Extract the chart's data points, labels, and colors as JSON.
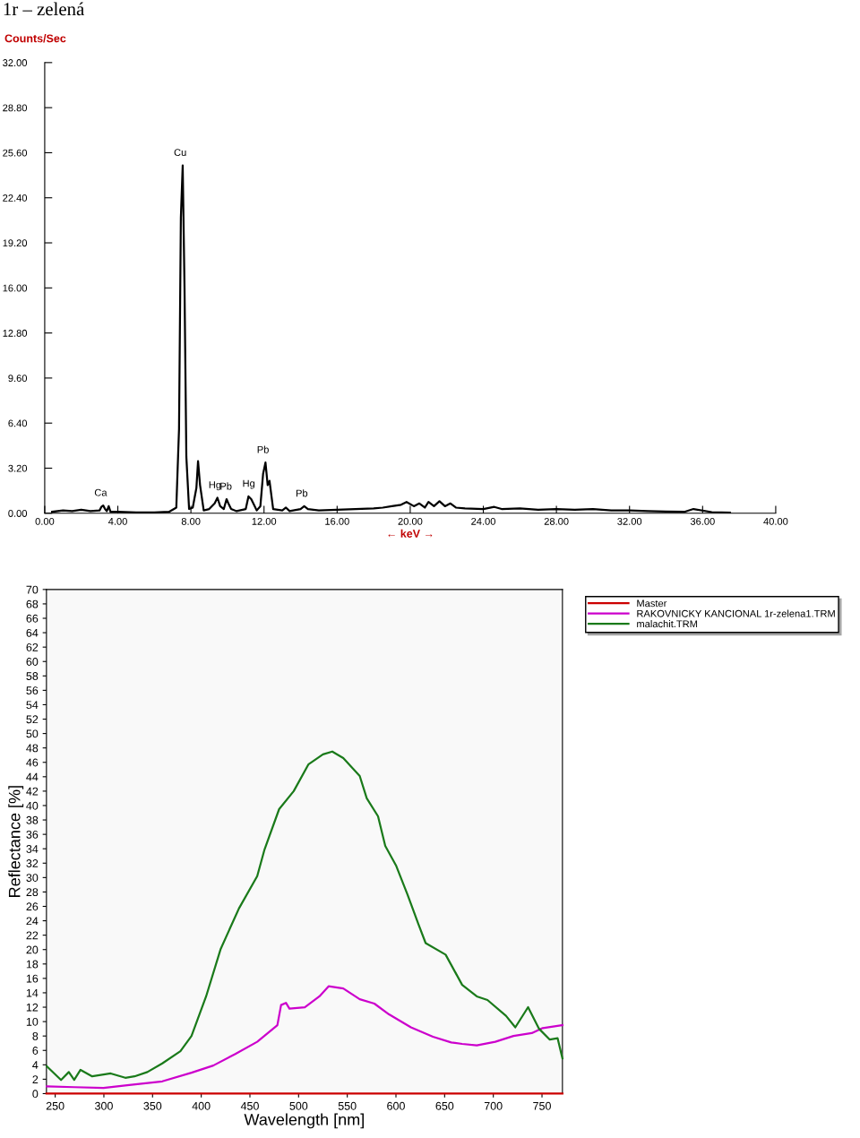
{
  "chart_data": [
    {
      "type": "line",
      "title": "1r – zelená",
      "ylabel": "Counts/Sec",
      "xlabel": "← keV →",
      "xlim": [
        0,
        40
      ],
      "ylim": [
        0,
        32
      ],
      "xticks": [
        {
          "value": 0,
          "label": "0.00"
        },
        {
          "value": 4,
          "label": "4.00"
        },
        {
          "value": 8,
          "label": "8.00"
        },
        {
          "value": 12,
          "label": "12.00"
        },
        {
          "value": 16,
          "label": "16.00"
        },
        {
          "value": 20,
          "label": "20.00"
        },
        {
          "value": 24,
          "label": "24.00"
        },
        {
          "value": 28,
          "label": "28.00"
        },
        {
          "value": 32,
          "label": "32.00"
        },
        {
          "value": 36,
          "label": "36.00"
        },
        {
          "value": 40,
          "label": "40.00"
        }
      ],
      "yticks": [
        {
          "value": 0,
          "label": "0.00"
        },
        {
          "value": 3.2,
          "label": "3.20"
        },
        {
          "value": 6.4,
          "label": "6.40"
        },
        {
          "value": 9.6,
          "label": "9.60"
        },
        {
          "value": 12.8,
          "label": "12.80"
        },
        {
          "value": 16,
          "label": "16.00"
        },
        {
          "value": 19.2,
          "label": "19.20"
        },
        {
          "value": 22.4,
          "label": "22.40"
        },
        {
          "value": 25.6,
          "label": "25.60"
        },
        {
          "value": 28.8,
          "label": "28.80"
        },
        {
          "value": 32,
          "label": "32.00"
        }
      ],
      "grid": false,
      "legend": false,
      "series": [
        {
          "color": "#000000",
          "x": [
            0.4,
            1.0,
            1.5,
            2.0,
            2.5,
            3.0,
            3.1,
            3.2,
            3.3,
            3.4,
            3.5,
            3.6,
            4.0,
            5.0,
            6.0,
            6.8,
            7.2,
            7.35,
            7.45,
            7.55,
            7.65,
            7.75,
            7.9,
            8.1,
            8.3,
            8.39,
            8.5,
            8.7,
            9.0,
            9.3,
            9.45,
            9.6,
            9.8,
            9.95,
            10.05,
            10.2,
            10.5,
            11.0,
            11.15,
            11.3,
            11.45,
            11.6,
            11.8,
            11.95,
            12.08,
            12.2,
            12.3,
            12.5,
            13.0,
            13.2,
            13.4,
            14.0,
            14.2,
            14.4,
            15.0,
            16.0,
            17.0,
            18.0,
            18.5,
            19.0,
            19.5,
            19.8,
            20.2,
            20.5,
            20.8,
            21.0,
            21.3,
            21.6,
            21.9,
            22.2,
            22.5,
            23.0,
            24.0,
            24.6,
            25.0,
            26.0,
            27.0,
            28.0,
            29.0,
            30.0,
            31.0,
            32.0,
            33.0,
            34.0,
            35.0,
            35.5,
            36.5,
            37.5
          ],
          "values": [
            0.1,
            0.2,
            0.15,
            0.25,
            0.15,
            0.2,
            0.45,
            0.55,
            0.3,
            0.15,
            0.5,
            0.1,
            0.1,
            0.05,
            0.05,
            0.1,
            0.4,
            6.0,
            21.0,
            24.7,
            16.0,
            4.0,
            0.3,
            0.4,
            1.8,
            3.7,
            2.0,
            0.2,
            0.3,
            0.7,
            1.1,
            0.5,
            0.3,
            1.0,
            0.7,
            0.3,
            0.15,
            0.3,
            1.2,
            1.0,
            0.6,
            0.2,
            0.5,
            2.8,
            3.6,
            2.0,
            2.3,
            0.3,
            0.2,
            0.4,
            0.15,
            0.3,
            0.5,
            0.3,
            0.2,
            0.25,
            0.3,
            0.35,
            0.4,
            0.5,
            0.6,
            0.8,
            0.5,
            0.7,
            0.4,
            0.8,
            0.5,
            0.85,
            0.5,
            0.7,
            0.4,
            0.35,
            0.3,
            0.45,
            0.3,
            0.35,
            0.25,
            0.3,
            0.25,
            0.3,
            0.2,
            0.2,
            0.15,
            0.12,
            0.1,
            0.3,
            0.08,
            0.05
          ]
        }
      ],
      "annotations": [
        {
          "text": "Ca",
          "x": 3.2,
          "y": 0.55
        },
        {
          "text": "Cu",
          "x": 7.55,
          "y": 24.7
        },
        {
          "text": "Hg",
          "x": 9.45,
          "y": 1.1
        },
        {
          "text": "Pb",
          "x": 10.05,
          "y": 1.0
        },
        {
          "text": "Hg",
          "x": 11.3,
          "y": 1.2
        },
        {
          "text": "Pb",
          "x": 12.08,
          "y": 3.6
        },
        {
          "text": "Pb",
          "x": 14.2,
          "y": 0.5
        }
      ]
    },
    {
      "type": "line",
      "xlabel": "Wavelength [nm]",
      "ylabel": "Reflectance [%]",
      "xlim": [
        241,
        771
      ],
      "ylim": [
        0,
        70
      ],
      "xticks": [
        250,
        300,
        350,
        400,
        450,
        500,
        550,
        600,
        650,
        700,
        750
      ],
      "yticks": [
        0,
        2,
        4,
        6,
        8,
        10,
        12,
        14,
        16,
        18,
        20,
        22,
        24,
        26,
        28,
        30,
        32,
        34,
        36,
        38,
        40,
        42,
        44,
        46,
        48,
        50,
        52,
        54,
        56,
        58,
        60,
        62,
        64,
        66,
        68,
        70
      ],
      "grid": false,
      "legend": "right",
      "series": [
        {
          "name": "Master",
          "color": "#cc0000",
          "x": [
            241,
            771
          ],
          "values": [
            0,
            0
          ]
        },
        {
          "name": "RAKOVNICKY KANCIONAL 1r-zelena1.TRM",
          "color": "#cc00cc",
          "x": [
            241.4,
            269.5,
            299.6,
            326,
            360,
            390,
            412.4,
            435,
            457.5,
            478.2,
            482,
            487,
            490.6,
            506.4,
            521.4,
            530.8,
            545.9,
            562.8,
            577.8,
            592.9,
            615.4,
            638,
            656.8,
            668,
            683,
            702,
            720.7,
            739.5,
            750.8,
            771
          ],
          "values": [
            1.0,
            0.9,
            0.8,
            1.2,
            1.7,
            2.9,
            3.9,
            5.5,
            7.2,
            9.5,
            12.3,
            12.6,
            11.8,
            12.0,
            13.5,
            14.9,
            14.6,
            13.1,
            12.5,
            11.0,
            9.2,
            7.9,
            7.1,
            6.9,
            6.7,
            7.2,
            8.0,
            8.4,
            9.1,
            9.5
          ]
        },
        {
          "name": "malachit.TRM",
          "color": "#1a7a1a",
          "x": [
            241.4,
            256,
            264,
            269.5,
            276,
            288,
            307,
            322,
            331.5,
            344.7,
            360,
            378.6,
            390,
            405,
            420,
            438.7,
            457.5,
            465,
            480,
            495,
            510,
            525,
            534.6,
            545.9,
            562.8,
            570,
            581.6,
            589,
            600,
            611.7,
            622.9,
            630.5,
            651,
            668,
            683,
            694,
            713,
            722.6,
            735.7,
            747,
            758,
            766,
            771
          ],
          "values": [
            3.8,
            1.9,
            3.0,
            1.9,
            3.3,
            2.4,
            2.8,
            2.2,
            2.4,
            3.0,
            4.2,
            5.9,
            8.0,
            13.5,
            20.1,
            25.7,
            30.2,
            33.9,
            39.5,
            42.0,
            45.7,
            47.1,
            47.5,
            46.6,
            44.1,
            41.0,
            38.5,
            34.4,
            31.7,
            27.7,
            23.6,
            20.9,
            19.3,
            15.1,
            13.5,
            13.0,
            10.8,
            9.2,
            12.0,
            9.0,
            7.5,
            7.7,
            4.9
          ]
        }
      ]
    }
  ]
}
